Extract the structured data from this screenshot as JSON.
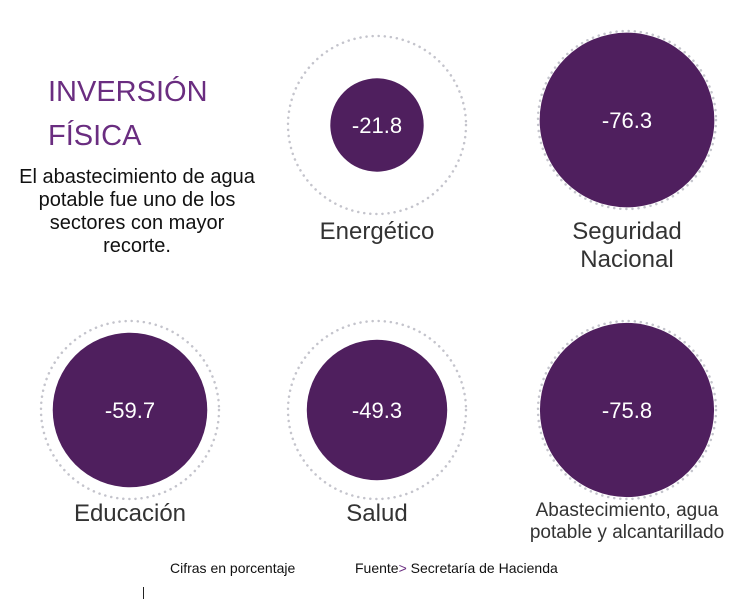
{
  "title_lines": [
    "INVERSIÓN",
    "FÍSICA"
  ],
  "subtitle": "El abastecimiento de agua potable fue uno de los sectores con mayor recorte.",
  "footer": {
    "note": "Cifras en porcentaje",
    "source_label": "Fuente",
    "source_sep": ">",
    "source": "Secretaría de Hacienda"
  },
  "colors": {
    "bubble": "#4f1f5e",
    "title": "#6a2d80",
    "ring": "#c4c4cc"
  },
  "chart_data": {
    "type": "bubble",
    "unit": "Cifras en porcentaje",
    "categories": [
      "Energético",
      "Seguridad Nacional",
      "Educación",
      "Salud",
      "Abastecimiento, agua potable y alcantarillado"
    ],
    "values": [
      -21.8,
      -76.3,
      -59.7,
      -49.3,
      -75.8
    ],
    "labels": [
      "-21.8",
      "-76.3",
      "-59.7",
      "-49.3",
      "-75.8"
    ],
    "category_lines": [
      [
        "Energético"
      ],
      [
        "Seguridad",
        "Nacional"
      ],
      [
        "Educación"
      ],
      [
        "Salud"
      ],
      [
        "Abastecimiento, agua",
        "potable y alcantarillado"
      ]
    ]
  }
}
